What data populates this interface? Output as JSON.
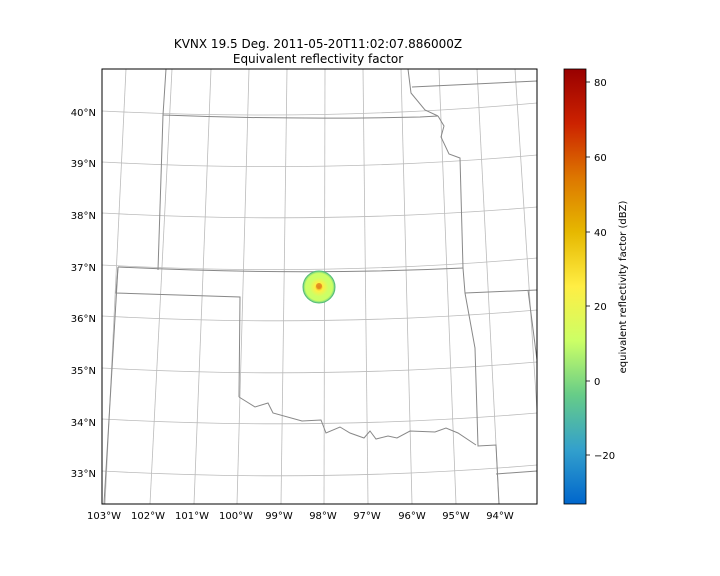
{
  "figure": {
    "title_line1": "KVNX 19.5 Deg. 2011-05-20T11:02:07.886000Z",
    "title_line2": "Equivalent reflectivity factor"
  },
  "map": {
    "projection": "lambert-conformal",
    "x_ticks": [
      "103°W",
      "102°W",
      "101°W",
      "100°W",
      "99°W",
      "98°W",
      "97°W",
      "96°W",
      "95°W",
      "94°W"
    ],
    "y_ticks": [
      "33°N",
      "34°N",
      "35°N",
      "36°N",
      "37°N",
      "38°N",
      "39°N",
      "40°N"
    ],
    "gridlines": true,
    "gridline_color": "#bbbbbb",
    "border_color": "#888888",
    "features": [
      "state-borders",
      "lat-lon-grid"
    ]
  },
  "chart_data": {
    "type": "heatmap",
    "radar_site": "KVNX",
    "site_lat": 36.74,
    "site_lon": -98.13,
    "max_range_deg": 0.35,
    "value_pattern": "radially-symmetric echo, values roughly 0 to 50 dBZ, decreasing outward from center",
    "colorbar": {
      "label": "equivalent reflectivity factor (dBZ)",
      "min": -32,
      "max": 84,
      "ticks": [
        "80",
        "60",
        "40",
        "20",
        "0",
        "−20"
      ],
      "tick_values": [
        80,
        60,
        40,
        20,
        0,
        -20
      ],
      "colormap": "HomeyerRainbow",
      "colors": [
        "#0066cc",
        "#33a0cc",
        "#66cc88",
        "#ccff66",
        "#ffee44",
        "#e6b800",
        "#dd7700",
        "#cc2200",
        "#990000"
      ]
    }
  }
}
